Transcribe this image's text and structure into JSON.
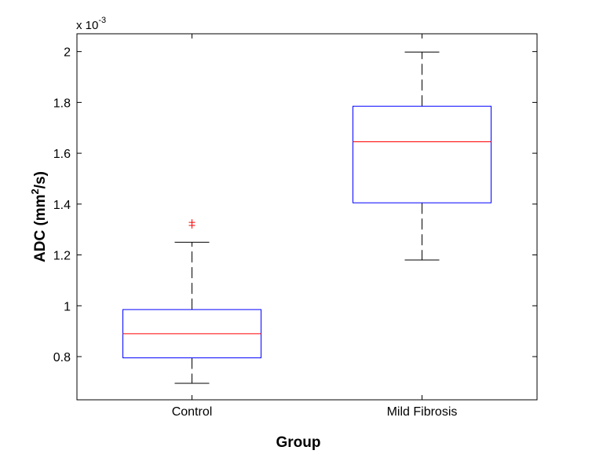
{
  "chart_data": {
    "type": "box",
    "title": "",
    "xlabel": "Group",
    "ylabel_main": "ADC (mm",
    "ylabel_sup": "2",
    "ylabel_tail": "/s)",
    "exponent_base": "x 10",
    "exponent_power": "-3",
    "ylim": [
      0.63,
      2.07
    ],
    "yticks": [
      0.8,
      1.0,
      1.2,
      1.4,
      1.6,
      1.8,
      2.0
    ],
    "ytick_labels": [
      "0.8",
      "1",
      "1.2",
      "1.4",
      "1.6",
      "1.8",
      "2"
    ],
    "categories": [
      "Control",
      "Mild Fibrosis"
    ],
    "boxes": [
      {
        "name": "Control",
        "whisker_low": 0.695,
        "q1": 0.795,
        "median": 0.89,
        "q3": 0.985,
        "whisker_high": 1.25,
        "outliers": [
          1.316,
          1.328
        ]
      },
      {
        "name": "Mild Fibrosis",
        "whisker_low": 1.18,
        "q1": 1.405,
        "median": 1.645,
        "q3": 1.785,
        "whisker_high": 1.998,
        "outliers": []
      }
    ],
    "colors": {
      "box": "#0000ff",
      "median": "#ff0000",
      "whisker": "#000000",
      "outlier": "#ff0000"
    }
  }
}
